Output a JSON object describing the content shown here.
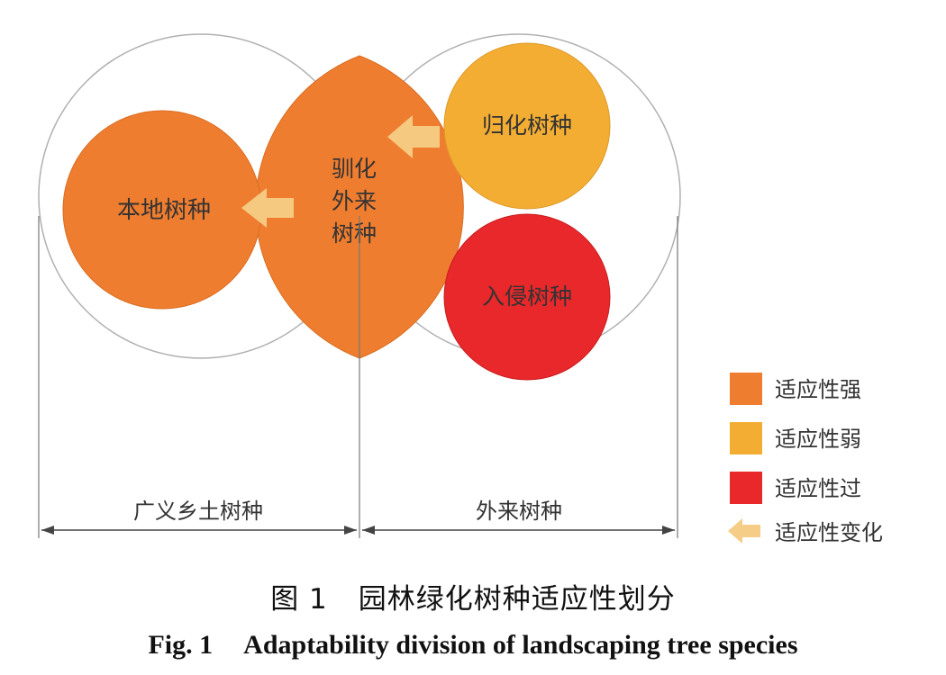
{
  "diagram": {
    "nodes": {
      "native": "本地树种",
      "domesticated_line1": "驯化",
      "domesticated_line2": "外来",
      "domesticated_line3": "树种",
      "naturalized": "归化树种",
      "invasive": "入侵树种"
    },
    "spans": {
      "left": "广义乡土树种",
      "right": "外来树种"
    },
    "legend": [
      {
        "label": "适应性强",
        "color": "#ef7d2f"
      },
      {
        "label": "适应性弱",
        "color": "#f3ad33"
      },
      {
        "label": "适应性过",
        "color": "#e8282a"
      },
      {
        "label": "适应性变化",
        "color": "#f6cd86",
        "icon": "arrow-left-icon"
      }
    ],
    "colors": {
      "strong": "#ef7d2f",
      "weak": "#f3ad33",
      "excessive": "#e8282a",
      "change_arrow": "#f6cd86",
      "outline": "#b0b0b0"
    }
  },
  "caption": {
    "zh_number": "图 1",
    "zh_title": "园林绿化树种适应性划分",
    "en_number": "Fig. 1",
    "en_title": "Adaptability division of landscaping tree species"
  }
}
